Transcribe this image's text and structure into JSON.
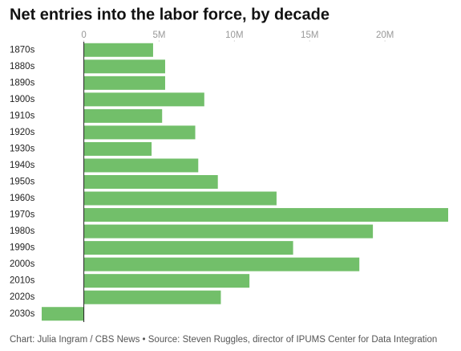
{
  "chart_data": {
    "type": "bar",
    "orientation": "horizontal",
    "title": "Net entries into the labor force, by decade",
    "categories": [
      "1870s",
      "1880s",
      "1890s",
      "1900s",
      "1910s",
      "1920s",
      "1930s",
      "1940s",
      "1950s",
      "1960s",
      "1970s",
      "1980s",
      "1990s",
      "2000s",
      "2010s",
      "2020s",
      "2030s"
    ],
    "values": [
      4600000,
      5400000,
      5400000,
      8000000,
      5200000,
      7400000,
      4500000,
      7600000,
      8900000,
      12800000,
      24200000,
      19200000,
      13900000,
      18300000,
      11000000,
      9100000,
      -2800000
    ],
    "color": "#72bf6a",
    "xlim": [
      -2800000,
      24200000
    ],
    "xticks": [
      0,
      {
        "value": 5000000,
        "label": "5M"
      },
      {
        "value": 10000000,
        "label": "10M"
      },
      {
        "value": 15000000,
        "label": "15M"
      },
      {
        "value": 20000000,
        "label": "20M"
      }
    ],
    "footnote": "Chart: Julia Ingram / CBS News • Source: Steven Ruggles, director of IPUMS Center for Data Integration"
  }
}
